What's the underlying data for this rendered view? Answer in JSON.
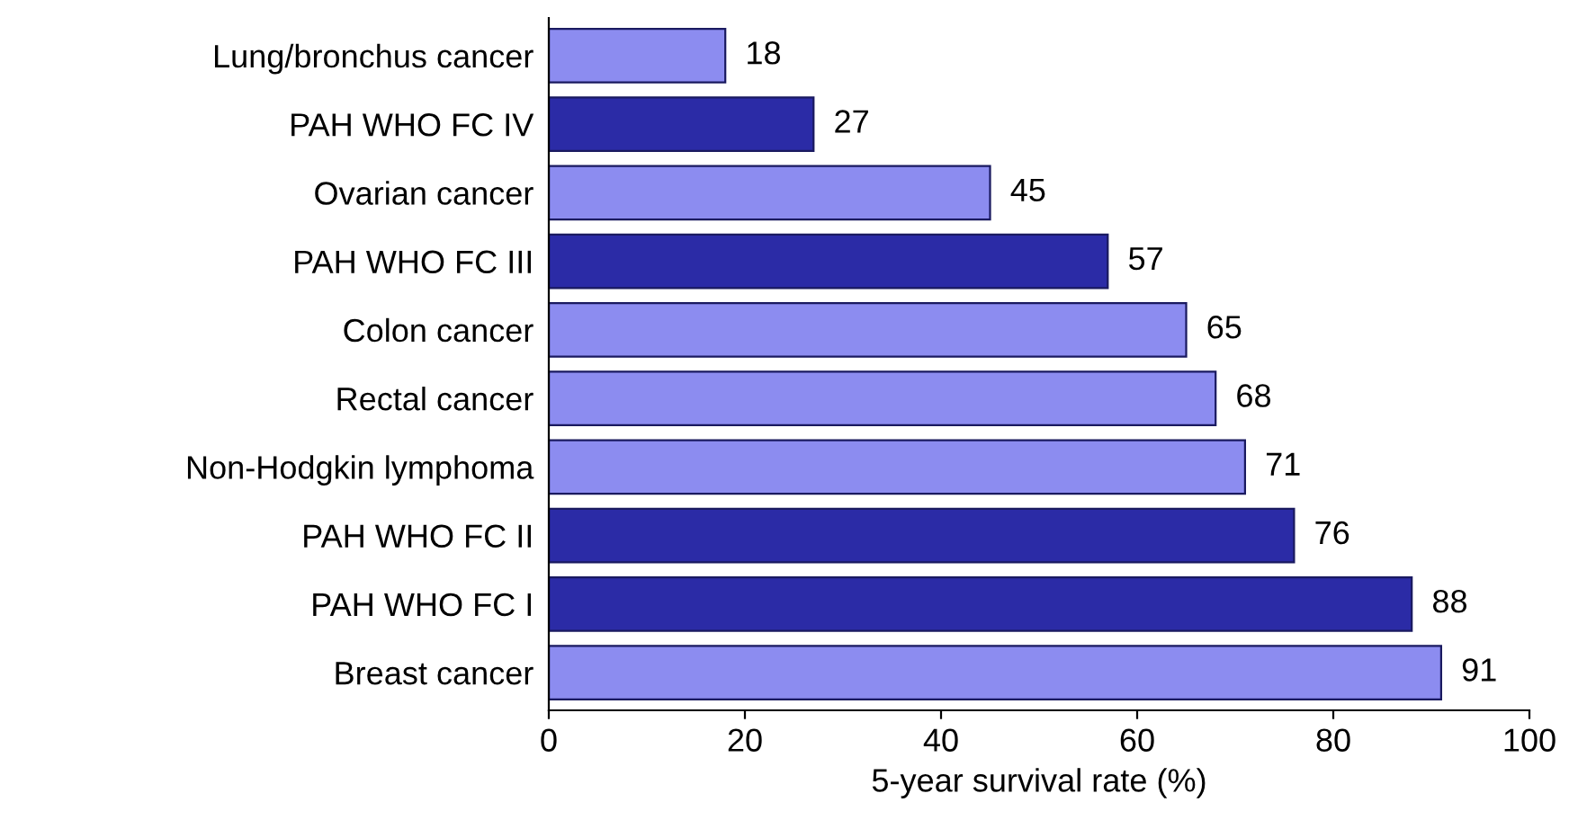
{
  "chart_data": {
    "type": "bar",
    "orientation": "horizontal",
    "xlabel": "5-year survival rate (%)",
    "categories": [
      "Lung/bronchus cancer",
      "PAH WHO FC IV",
      "Ovarian cancer",
      "PAH WHO FC III",
      "Colon cancer",
      "Rectal cancer",
      "Non-Hodgkin lymphoma",
      "PAH WHO FC II",
      "PAH WHO FC I",
      "Breast cancer"
    ],
    "values": [
      18,
      27,
      45,
      57,
      65,
      68,
      71,
      76,
      88,
      91
    ],
    "colors": [
      "#8c8cf0",
      "#2b2ba6",
      "#8c8cf0",
      "#2b2ba6",
      "#8c8cf0",
      "#8c8cf0",
      "#8c8cf0",
      "#2b2ba6",
      "#2b2ba6",
      "#8c8cf0"
    ],
    "xlim": [
      0,
      100
    ],
    "xticks": [
      0,
      20,
      40,
      60,
      80,
      100
    ],
    "data_labels": true,
    "grid": false,
    "legend": false
  }
}
